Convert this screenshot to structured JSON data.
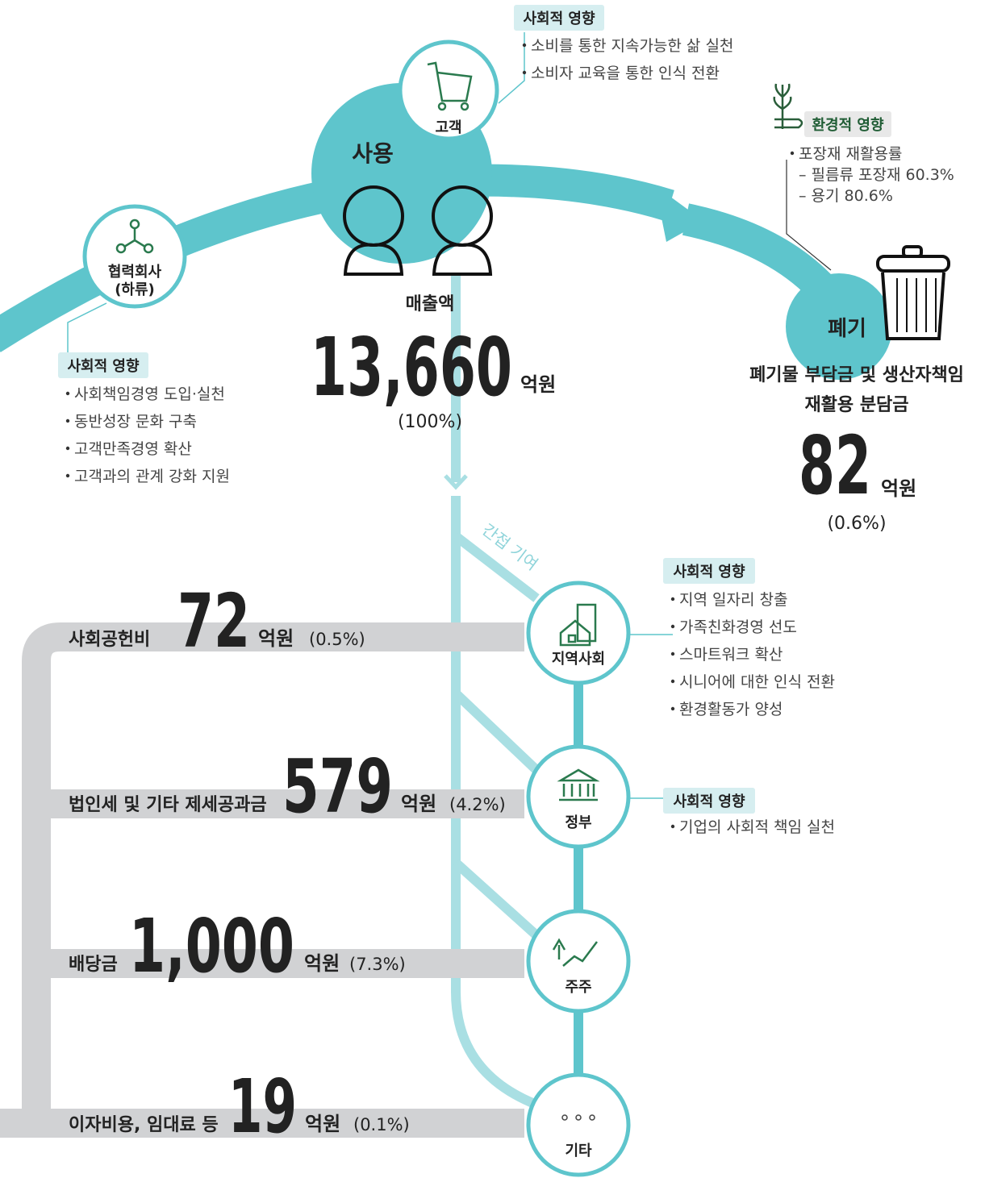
{
  "customer": {
    "label": "고객",
    "impact": {
      "tag": "사회적 영향",
      "items": [
        "소비를 통한 지속가능한 삶 실천",
        "소비자 교육을 통한 인식 전환"
      ]
    }
  },
  "use": {
    "label": "사용"
  },
  "partner": {
    "label_lines": [
      "협력회사",
      "(하류)"
    ],
    "impact": {
      "tag": "사회적 영향",
      "items": [
        "사회책임경영 도입·실천",
        "동반성장 문화 구축",
        "고객만족경영 확산",
        "고객과의 관계 강화 지원"
      ]
    }
  },
  "sales": {
    "label": "매출액",
    "amount": "13,660",
    "unit": "억원",
    "share": "(100%)"
  },
  "disposal": {
    "label": "폐기",
    "env_impact": {
      "tag": "환경적 영향",
      "items": [
        "포장재 재활용률",
        "– 필름류 포장재 60.3%",
        "– 용기 80.6%"
      ]
    },
    "desc_lines": [
      "폐기물 부담금 및 생산자책임",
      "재활용 분담금"
    ],
    "amount": "82",
    "unit": "억원",
    "share": "(0.6%)"
  },
  "indirect_label": "간접 기여",
  "distribution": [
    {
      "label": "사회공헌비",
      "amount": "72",
      "unit": "억원",
      "share": "(0.5%)",
      "node": "지역사회"
    },
    {
      "label": "법인세 및 기타 제세공과금",
      "amount": "579",
      "unit": "억원",
      "share": "(4.2%)",
      "node": "정부"
    },
    {
      "label": "배당금",
      "amount": "1,000",
      "unit": "억원",
      "share": "(7.3%)",
      "node": "주주"
    },
    {
      "label": "이자비용, 임대료 등",
      "amount": "19",
      "unit": "억원",
      "share": "(0.1%)",
      "node": "기타"
    }
  ],
  "community_impact": {
    "tag": "사회적 영향",
    "items": [
      "지역 일자리 창출",
      "가족친화경영 선도",
      "스마트워크 확산",
      "시니어에 대한 인식 전환",
      "환경활동가 양성"
    ]
  },
  "government_impact": {
    "tag": "사회적 영향",
    "items": [
      "기업의 사회적 책임 실천"
    ]
  }
}
